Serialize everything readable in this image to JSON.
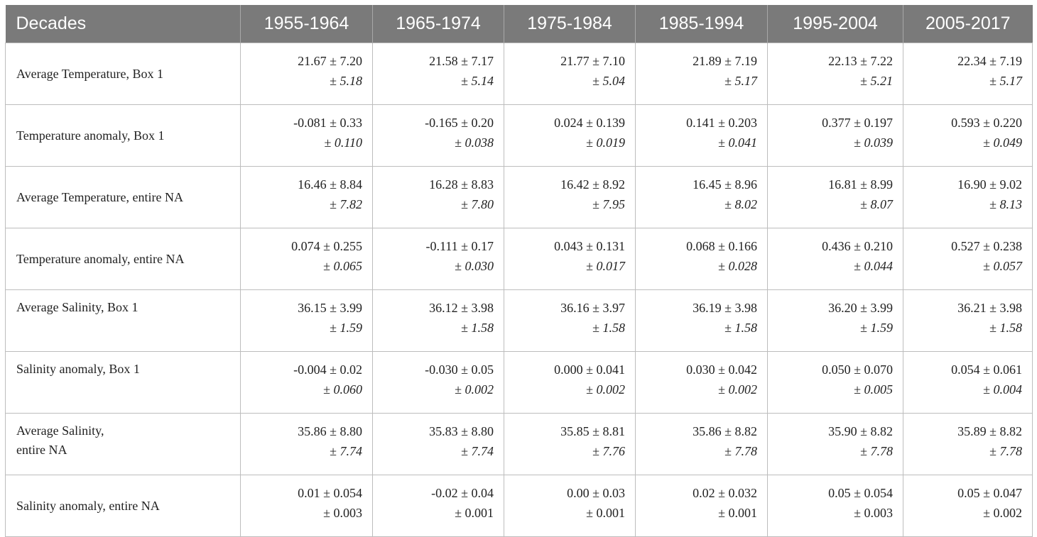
{
  "header": {
    "first": "Decades",
    "decades": [
      "1955-1964",
      "1965-1974",
      "1975-1984",
      "1985-1994",
      "1995-2004",
      "2005-2017"
    ]
  },
  "rows": [
    {
      "label": "Average Temperature, Box 1",
      "cells": [
        {
          "v1": "21.67 ± 7.20",
          "pm": "± ",
          "v2": "5.18"
        },
        {
          "v1": "21.58 ± 7.17",
          "pm": "± ",
          "v2": "5.14"
        },
        {
          "v1": "21.77 ± 7.10",
          "pm": "± ",
          "v2": "5.04"
        },
        {
          "v1": "21.89 ± 7.19",
          "pm": "± ",
          "v2": "5.17"
        },
        {
          "v1": "22.13 ± 7.22",
          "pm": "± ",
          "v2": "5.21"
        },
        {
          "v1": "22.34 ± 7.19",
          "pm": "± ",
          "v2": "5.17"
        }
      ]
    },
    {
      "label": "Temperature anomaly, Box 1",
      "cells": [
        {
          "v1": "-0.081 ± 0.33",
          "pm": "± ",
          "v2": "0.110"
        },
        {
          "v1": "-0.165 ± 0.20",
          "pm": "± ",
          "v2": "0.038"
        },
        {
          "v1": "0.024 ± 0.139",
          "pm": "± ",
          "v2": "0.019"
        },
        {
          "v1": "0.141 ± 0.203",
          "pm": "± ",
          "v2": "0.041"
        },
        {
          "v1": "0.377 ± 0.197",
          "pm": "± ",
          "v2": "0.039"
        },
        {
          "v1": "0.593 ± 0.220",
          "pm": "± ",
          "v2": "0.049"
        }
      ]
    },
    {
      "label": "Average Temperature, entire NA",
      "cells": [
        {
          "v1": "16.46 ± 8.84",
          "pm": "± ",
          "v2": "7.82"
        },
        {
          "v1": "16.28 ± 8.83",
          "pm": "± ",
          "v2": "7.80"
        },
        {
          "v1": "16.42 ± 8.92",
          "pm": "± ",
          "v2": "7.95"
        },
        {
          "v1": "16.45 ± 8.96",
          "pm": "± ",
          "v2": "8.02"
        },
        {
          "v1": "16.81 ± 8.99",
          "pm": "± ",
          "v2": "8.07"
        },
        {
          "v1": "16.90 ± 9.02",
          "pm": "± ",
          "v2": "8.13"
        }
      ]
    },
    {
      "label": "Temperature anomaly, entire NA",
      "cells": [
        {
          "v1": "0.074 ± 0.255",
          "pm": "± ",
          "v2": "0.065"
        },
        {
          "v1": "-0.111 ± 0.17",
          "pm": "± ",
          "v2": "0.030"
        },
        {
          "v1": "0.043 ± 0.131",
          "pm": "± ",
          "v2": "0.017"
        },
        {
          "v1": "0.068 ± 0.166",
          "pm": "± ",
          "v2": "0.028"
        },
        {
          "v1": "0.436 ± 0.210",
          "pm": "± ",
          "v2": "0.044"
        },
        {
          "v1": "0.527 ± 0.238",
          "pm": "± ",
          "v2": "0.057"
        }
      ]
    },
    {
      "label": "Average Salinity, Box 1",
      "cells": [
        {
          "v1": "36.15 ± 3.99",
          "pm": "± ",
          "v2": "1.59"
        },
        {
          "v1": "36.12 ± 3.98",
          "pm": "± ",
          "v2": "1.58"
        },
        {
          "v1": "36.16 ± 3.97",
          "pm": "± ",
          "v2": "1.58"
        },
        {
          "v1": "36.19 ± 3.98",
          "pm": "± ",
          "v2": "1.58"
        },
        {
          "v1": "36.20 ± 3.99",
          "pm": "± ",
          "v2": "1.59"
        },
        {
          "v1": "36.21 ± 3.98",
          "pm": "± ",
          "v2": "1.58"
        }
      ]
    },
    {
      "label": "Salinity anomaly, Box 1",
      "cells": [
        {
          "v1": "-0.004 ± 0.02",
          "pm": "± ",
          "v2": "0.060"
        },
        {
          "v1": "-0.030 ± 0.05",
          "pm": "± ",
          "v2": "0.002"
        },
        {
          "v1": "0.000 ± 0.041",
          "pm": "± ",
          "v2": "0.002"
        },
        {
          "v1": "0.030 ± 0.042",
          "pm": "± ",
          "v2": "0.002"
        },
        {
          "v1": "0.050 ± 0.070",
          "pm": "± ",
          "v2": "0.005"
        },
        {
          "v1": "0.054 ± 0.061",
          "pm": "± ",
          "v2": "0.004"
        }
      ]
    },
    {
      "label1": "Average Salinity,",
      "label2": "entire NA",
      "cells": [
        {
          "v1": "35.86 ± 8.80",
          "pm": "± ",
          "v2": "7.74"
        },
        {
          "v1": "35.83 ± 8.80",
          "pm": "± ",
          "v2": "7.74"
        },
        {
          "v1": "35.85 ± 8.81",
          "pm": "± ",
          "v2": "7.76"
        },
        {
          "v1": "35.86 ± 8.82",
          "pm": "± ",
          "v2": "7.78"
        },
        {
          "v1": "35.90 ± 8.82",
          "pm": "± ",
          "v2": "7.78"
        },
        {
          "v1": "35.89 ± 8.82",
          "pm": "± ",
          "v2": "7.78"
        }
      ]
    },
    {
      "label": "Salinity anomaly, entire NA",
      "cells": [
        {
          "v1": "0.01 ± 0.054",
          "v2": "± 0.003"
        },
        {
          "v1": "-0.02 ± 0.04",
          "v2": "± 0.001"
        },
        {
          "v1": "0.00 ± 0.03",
          "v2": "± 0.001"
        },
        {
          "v1": "0.02 ± 0.032",
          "v2": "± 0.001"
        },
        {
          "v1": "0.05 ± 0.054",
          "v2": "± 0.003"
        },
        {
          "v1": "0.05 ± 0.047",
          "v2": "± 0.002"
        }
      ]
    }
  ]
}
